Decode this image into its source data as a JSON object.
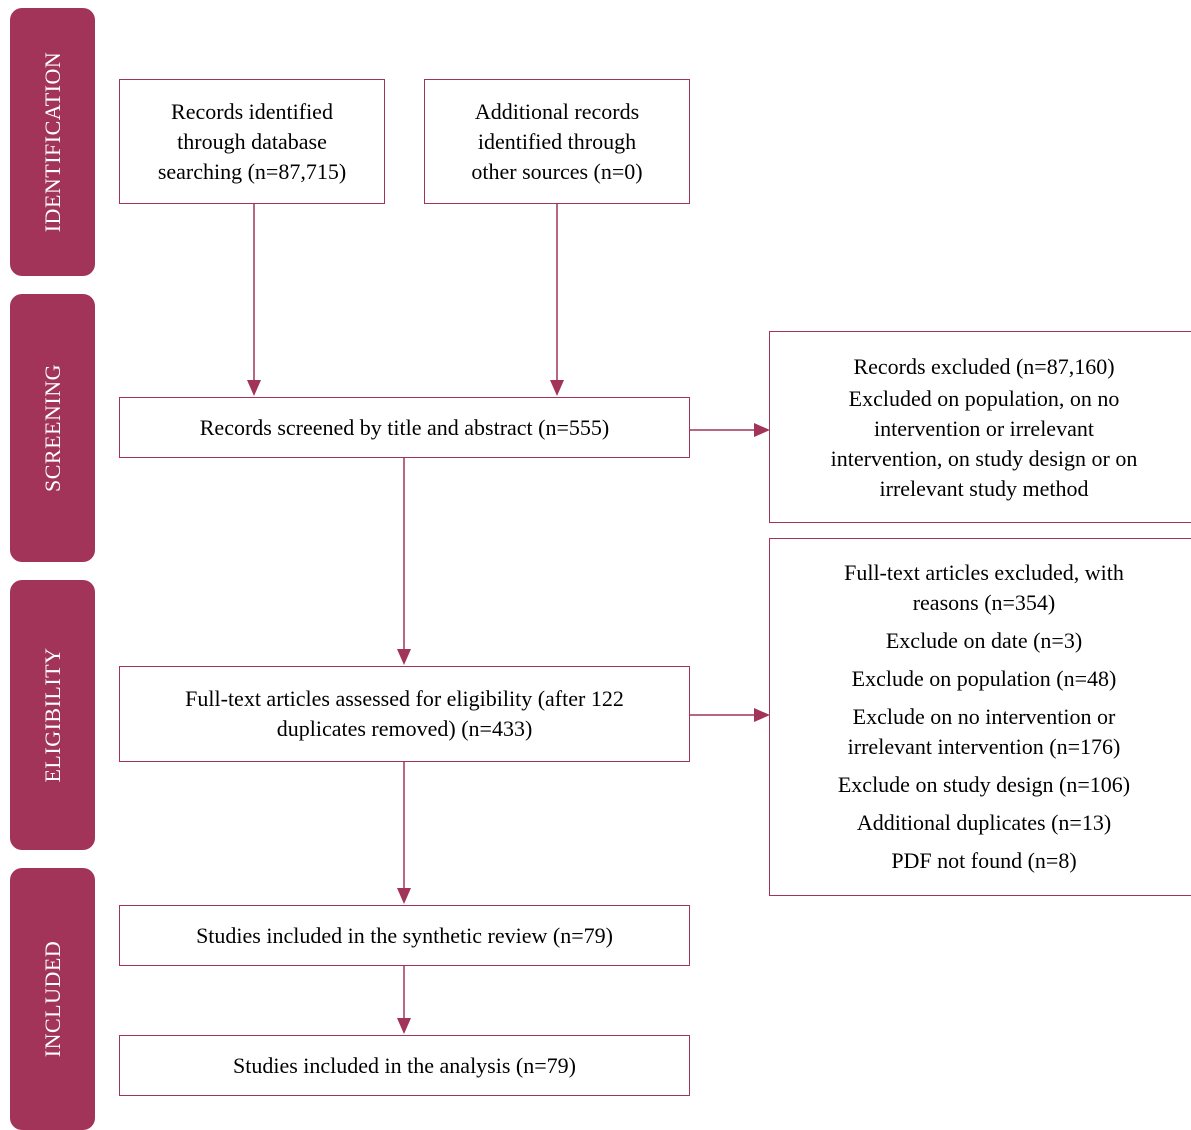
{
  "phases": {
    "identification": "IDENTIFICATION",
    "screening": "SCREENING",
    "eligibility": "ELIGIBILITY",
    "included": "INCLUDED"
  },
  "boxes": {
    "database_records": [
      "Records identified",
      "through database",
      "searching (n=87,715)"
    ],
    "additional_records": [
      "Additional records",
      "identified through",
      "other sources (n=0)"
    ],
    "screened": "Records screened by title and abstract (n=555)",
    "excluded_screening": {
      "title": "Records excluded (n=87,160)",
      "reasons": [
        "Excluded on population, on no",
        "intervention or irrelevant",
        "intervention, on study design or on",
        "irrelevant study method"
      ]
    },
    "fulltext_assessed": [
      "Full-text articles assessed for eligibility (after 122",
      "duplicates removed) (n=433)"
    ],
    "fulltext_excluded": {
      "title": [
        "Full-text articles excluded, with",
        "reasons (n=354)"
      ],
      "reasons": [
        "Exclude on date (n=3)",
        "Exclude on population (n=48)",
        "Exclude on no intervention or",
        "irrelevant intervention (n=176)",
        "Exclude on study design (n=106)",
        "Additional duplicates (n=13)",
        "PDF not found (n=8)"
      ]
    },
    "synthetic_review": "Studies included in the synthetic review (n=79)",
    "analysis": "Studies included in the analysis (n=79)"
  },
  "colors": {
    "accent": "#a23459",
    "text": "#000000",
    "background": "#ffffff"
  }
}
